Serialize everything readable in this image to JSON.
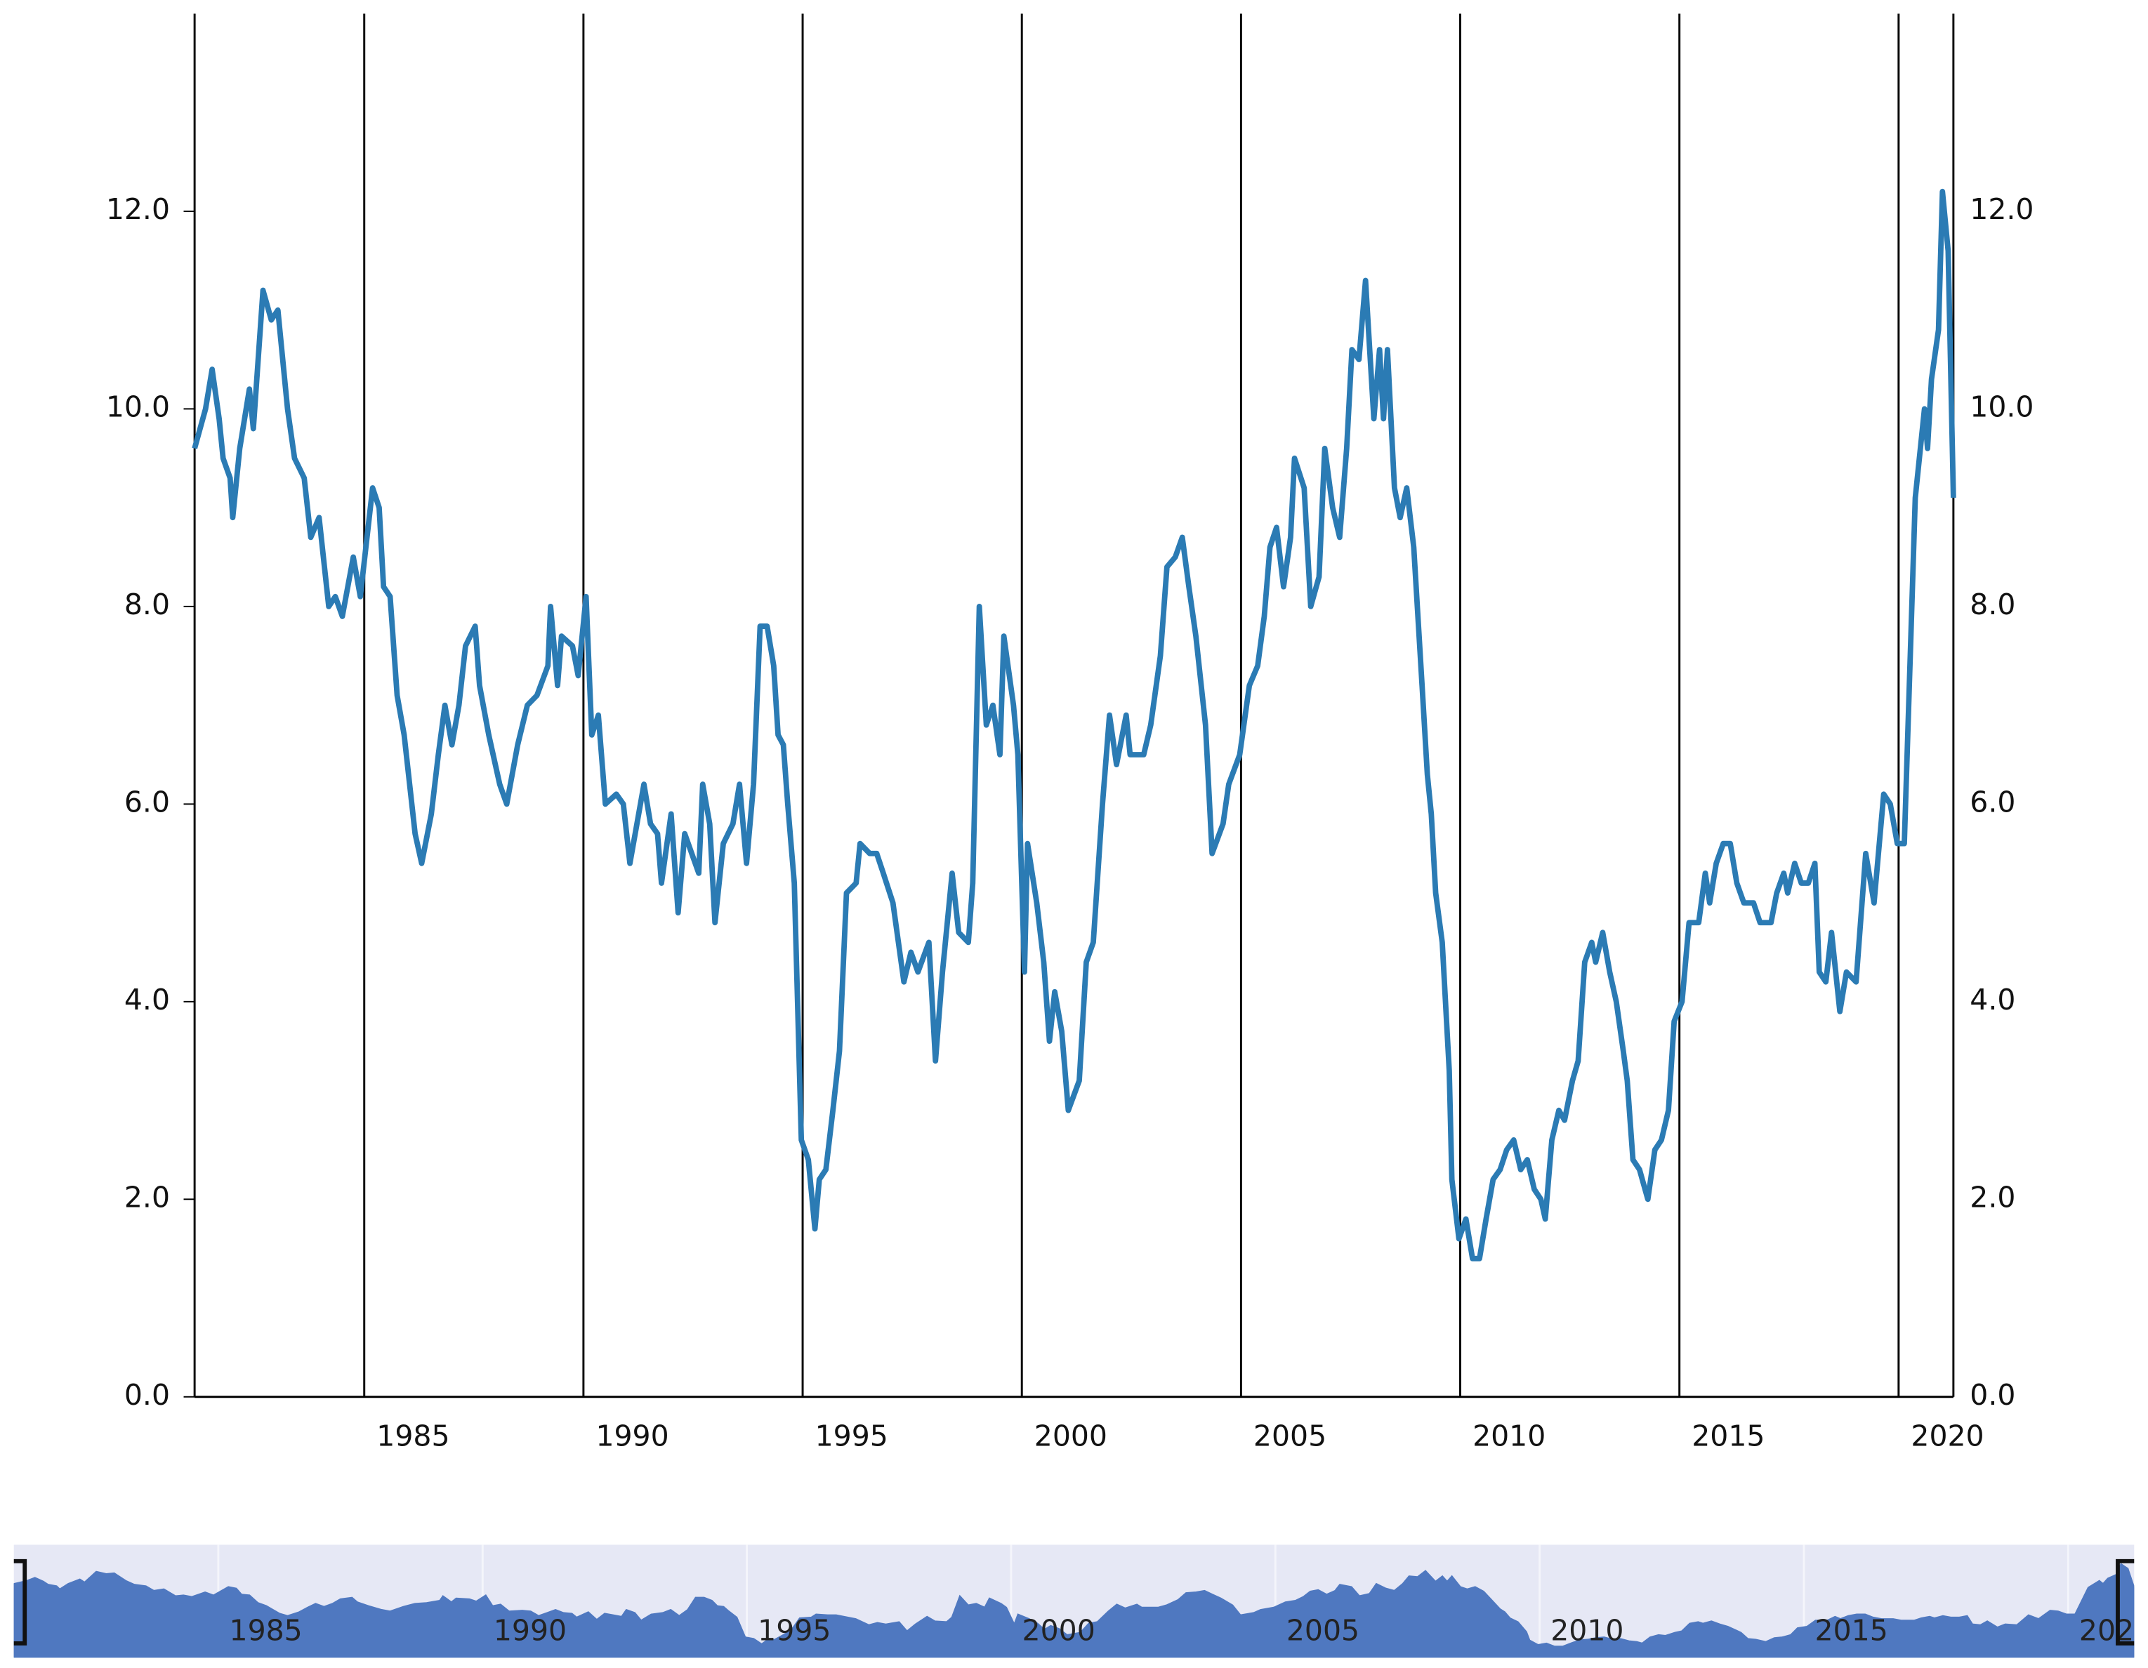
{
  "chart_data": {
    "type": "line",
    "x": [
      1981.13,
      1981.38,
      1981.53,
      1981.69,
      1981.78,
      1981.94,
      1982.0,
      1982.16,
      1982.38,
      1982.47,
      1982.69,
      1982.88,
      1983.03,
      1983.25,
      1983.41,
      1983.63,
      1983.78,
      1983.97,
      1984.19,
      1984.34,
      1984.5,
      1984.75,
      1984.91,
      1985.19,
      1985.34,
      1985.44,
      1985.59,
      1985.75,
      1985.91,
      1986.16,
      1986.31,
      1986.53,
      1986.69,
      1986.84,
      1987.0,
      1987.16,
      1987.31,
      1987.53,
      1987.63,
      1987.84,
      1988.09,
      1988.25,
      1988.5,
      1988.72,
      1988.94,
      1989.19,
      1989.25,
      1989.41,
      1989.5,
      1989.75,
      1989.88,
      1990.06,
      1990.19,
      1990.34,
      1990.5,
      1990.75,
      1990.91,
      1991.06,
      1991.22,
      1991.38,
      1991.53,
      1991.69,
      1991.78,
      1992.0,
      1992.16,
      1992.31,
      1992.47,
      1992.63,
      1992.72,
      1992.88,
      1993.0,
      1993.19,
      1993.41,
      1993.56,
      1993.72,
      1993.88,
      1994.03,
      1994.19,
      1994.34,
      1994.44,
      1994.56,
      1994.66,
      1994.81,
      1994.97,
      1995.13,
      1995.28,
      1995.38,
      1995.53,
      1995.69,
      1995.84,
      1996.0,
      1996.22,
      1996.31,
      1996.53,
      1996.69,
      1996.84,
      1997.06,
      1997.31,
      1997.47,
      1997.63,
      1997.88,
      1998.03,
      1998.19,
      1998.41,
      1998.56,
      1998.78,
      1998.88,
      1999.03,
      1999.19,
      1999.34,
      1999.5,
      1999.59,
      1999.81,
      1999.91,
      2000.06,
      2000.13,
      2000.34,
      2000.5,
      2000.63,
      2000.75,
      2000.91,
      2001.06,
      2001.31,
      2001.47,
      2001.63,
      2001.84,
      2002.0,
      2002.16,
      2002.38,
      2002.47,
      2002.78,
      2002.94,
      2003.16,
      2003.31,
      2003.5,
      2003.66,
      2003.81,
      2003.97,
      2004.19,
      2004.34,
      2004.59,
      2004.72,
      2004.97,
      2005.19,
      2005.38,
      2005.53,
      2005.66,
      2005.81,
      2005.97,
      2006.13,
      2006.22,
      2006.44,
      2006.59,
      2006.78,
      2006.91,
      2007.09,
      2007.25,
      2007.41,
      2007.53,
      2007.69,
      2007.84,
      2008.03,
      2008.16,
      2008.25,
      2008.34,
      2008.5,
      2008.63,
      2008.78,
      2008.94,
      2009.13,
      2009.25,
      2009.34,
      2009.44,
      2009.59,
      2009.75,
      2009.81,
      2009.97,
      2010.13,
      2010.28,
      2010.44,
      2010.59,
      2010.75,
      2010.91,
      2011.06,
      2011.22,
      2011.38,
      2011.53,
      2011.69,
      2011.84,
      2011.94,
      2012.09,
      2012.25,
      2012.38,
      2012.56,
      2012.69,
      2012.84,
      2013.0,
      2013.09,
      2013.25,
      2013.41,
      2013.56,
      2013.72,
      2013.81,
      2013.94,
      2014.09,
      2014.28,
      2014.44,
      2014.59,
      2014.75,
      2014.88,
      2015.06,
      2015.22,
      2015.44,
      2015.59,
      2015.69,
      2015.84,
      2016.0,
      2016.16,
      2016.31,
      2016.47,
      2016.69,
      2016.84,
      2017.09,
      2017.22,
      2017.38,
      2017.47,
      2017.63,
      2017.78,
      2017.94,
      2018.09,
      2018.19,
      2018.34,
      2018.47,
      2018.66,
      2018.81,
      2019.03,
      2019.25,
      2019.44,
      2019.66,
      2019.81,
      2019.97,
      2020.13,
      2020.28,
      2020.38,
      2020.59,
      2020.66,
      2020.75,
      2020.91,
      2021.0,
      2021.13,
      2021.25
    ],
    "series": [
      {
        "color": "#2b7bb4",
        "values": [
          9.6,
          10.0,
          10.4,
          9.9,
          9.5,
          9.3,
          8.9,
          9.6,
          10.2,
          9.8,
          11.2,
          10.9,
          11.0,
          10.0,
          9.5,
          9.3,
          8.7,
          8.9,
          8.0,
          8.1,
          7.9,
          8.5,
          8.1,
          9.2,
          9.0,
          8.2,
          8.1,
          7.1,
          6.7,
          5.7,
          5.4,
          5.9,
          6.5,
          7.0,
          6.6,
          7.0,
          7.6,
          7.8,
          7.2,
          6.7,
          6.2,
          6.0,
          6.6,
          7.0,
          7.1,
          7.4,
          8.0,
          7.2,
          7.7,
          7.6,
          7.3,
          8.1,
          6.7,
          6.9,
          6.0,
          6.1,
          6.0,
          5.4,
          5.8,
          6.2,
          5.8,
          5.7,
          5.2,
          5.9,
          4.9,
          5.7,
          5.5,
          5.3,
          6.2,
          5.8,
          4.8,
          5.6,
          5.8,
          6.2,
          5.4,
          6.2,
          7.8,
          7.8,
          7.4,
          6.7,
          6.6,
          6.0,
          5.2,
          2.6,
          2.4,
          1.7,
          2.2,
          2.3,
          2.9,
          3.5,
          5.1,
          5.2,
          5.6,
          5.5,
          5.5,
          5.3,
          5.0,
          4.2,
          4.5,
          4.3,
          4.6,
          3.4,
          4.3,
          5.3,
          4.7,
          4.6,
          5.2,
          8.0,
          6.8,
          7.0,
          6.5,
          7.7,
          7.0,
          6.5,
          4.3,
          5.6,
          5.0,
          4.4,
          3.6,
          4.1,
          3.7,
          2.9,
          3.2,
          4.4,
          4.6,
          6.0,
          6.9,
          6.4,
          6.9,
          6.5,
          6.5,
          6.8,
          7.5,
          8.4,
          8.5,
          8.7,
          8.2,
          7.7,
          6.8,
          5.5,
          5.8,
          6.2,
          6.5,
          7.2,
          7.4,
          7.9,
          8.6,
          8.8,
          8.2,
          8.7,
          9.5,
          9.2,
          8.0,
          8.3,
          9.6,
          9.0,
          8.7,
          9.6,
          10.6,
          10.5,
          11.3,
          9.9,
          10.6,
          9.9,
          10.6,
          9.2,
          8.9,
          9.2,
          8.6,
          7.2,
          6.3,
          5.9,
          5.1,
          4.6,
          3.3,
          2.2,
          1.6,
          1.8,
          1.4,
          1.4,
          1.8,
          2.2,
          2.3,
          2.5,
          2.6,
          2.3,
          2.4,
          2.1,
          2.0,
          1.8,
          2.6,
          2.9,
          2.8,
          3.2,
          3.4,
          4.4,
          4.6,
          4.4,
          4.7,
          4.3,
          4.0,
          3.5,
          3.2,
          2.4,
          2.3,
          2.0,
          2.5,
          2.6,
          2.9,
          3.8,
          4.0,
          4.8,
          4.8,
          5.3,
          5.0,
          5.4,
          5.6,
          5.6,
          5.2,
          5.0,
          5.0,
          4.8,
          4.8,
          5.1,
          5.3,
          5.1,
          5.4,
          5.2,
          5.2,
          5.4,
          4.3,
          4.2,
          4.7,
          3.9,
          4.3,
          4.2,
          5.5,
          5.0,
          6.1,
          6.0,
          5.6,
          5.6,
          7.7,
          9.1,
          10.0,
          9.6,
          10.3,
          10.8,
          12.2,
          11.6,
          9.1
        ]
      }
    ],
    "xlim": [
      1981.13,
      2021.25
    ],
    "xticks": [
      1985,
      1990,
      1995,
      2000,
      2005,
      2010,
      2015,
      2020
    ],
    "ylim": [
      0,
      14
    ],
    "yticks": [
      {
        "value": 0,
        "label": "0.0"
      },
      {
        "value": 2,
        "label": "2.0"
      },
      {
        "value": 4,
        "label": "4.0"
      },
      {
        "value": 6,
        "label": "6.0"
      },
      {
        "value": 8,
        "label": "8.0"
      },
      {
        "value": 10,
        "label": "10.0"
      },
      {
        "value": 12,
        "label": "12.0"
      }
    ],
    "grid": true,
    "navigator": true,
    "navigator_color": "#4f78c0"
  }
}
